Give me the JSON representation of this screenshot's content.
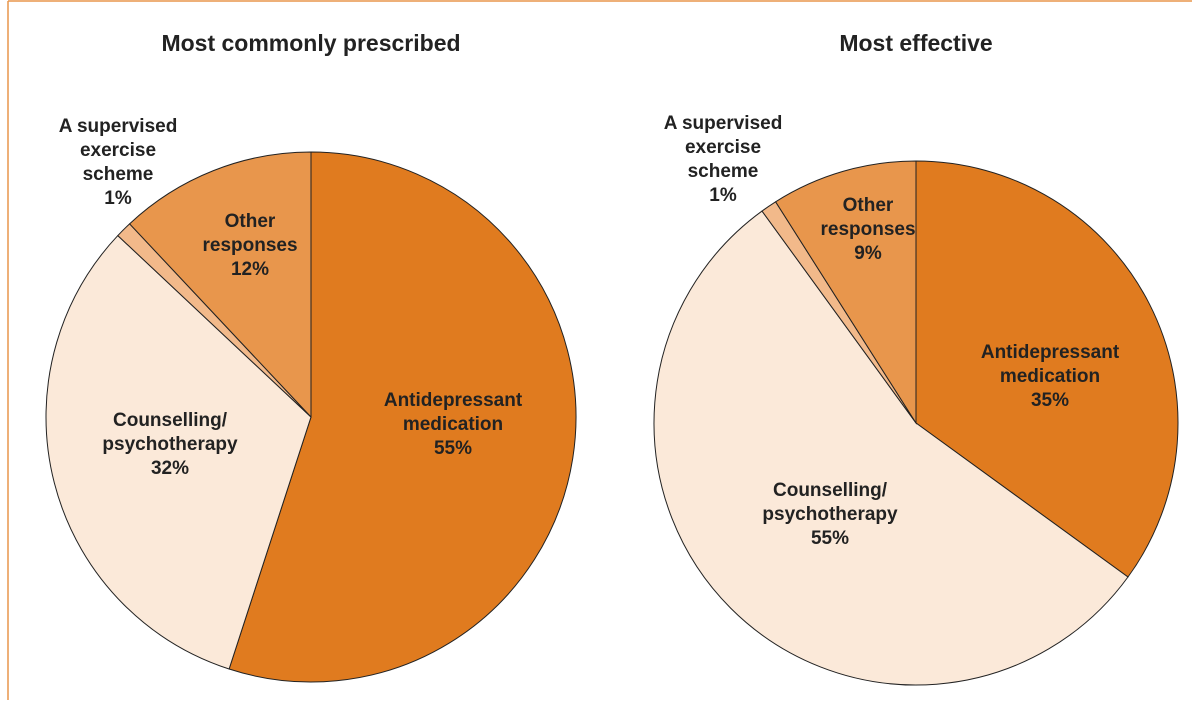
{
  "chart_data": [
    {
      "type": "pie",
      "title": "Most commonly prescribed",
      "categories": [
        "Antidepressant\nmedication",
        "Counselling/\npsychotherapy",
        "A supervised\nexercise\nscheme",
        "Other\nresponses"
      ],
      "values": [
        55,
        32,
        1,
        12
      ],
      "value_labels": [
        "55%",
        "32%",
        "1%",
        "12%"
      ],
      "colors": [
        "#e07b1f",
        "#fbe9d9",
        "#f2b98a",
        "#e8964c"
      ]
    },
    {
      "type": "pie",
      "title": "Most effective",
      "categories": [
        "Antidepressant\nmedication",
        "Counselling/\npsychotherapy",
        "A supervised\nexercise\nscheme",
        "Other\nresponses"
      ],
      "values": [
        35,
        55,
        1,
        9
      ],
      "value_labels": [
        "35%",
        "55%",
        "1%",
        "9%"
      ],
      "colors": [
        "#e07b1f",
        "#fbe9d9",
        "#f2b98a",
        "#e8964c"
      ]
    }
  ]
}
